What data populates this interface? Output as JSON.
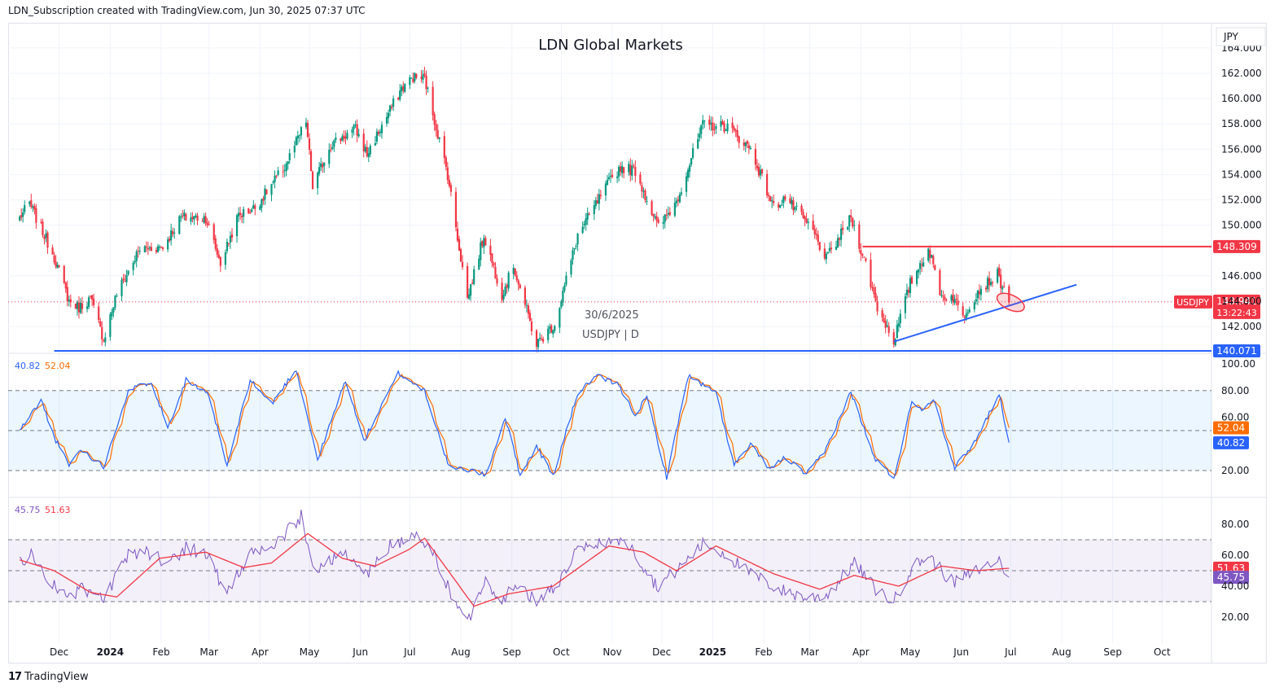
{
  "header": {
    "caption": "LDN_Subscription created with TradingView.com, Jun 30, 2025 07:37 UTC"
  },
  "footer": {
    "brand": "TradingView",
    "logo_glyph": "17"
  },
  "chart_data": [
    {
      "type": "candlestick",
      "title": "LDN Global Markets",
      "symbol_label": "USDJPY | D",
      "date_label": "30/6/2025",
      "currency": "JPY",
      "y_ticks": [
        "164.000",
        "162.000",
        "160.000",
        "158.000",
        "156.000",
        "154.000",
        "152.000",
        "150.000",
        "146.000",
        "144.000",
        "142.000"
      ],
      "ylim": [
        139.5,
        164.5
      ],
      "x_ticks": [
        "Dec",
        "2024",
        "Feb",
        "Mar",
        "Apr",
        "May",
        "Jun",
        "Jul",
        "Aug",
        "Sep",
        "Oct",
        "Nov",
        "Dec",
        "2025",
        "Feb",
        "Mar",
        "Apr",
        "May",
        "Jun",
        "Jul",
        "Aug",
        "Sep",
        "Oct"
      ],
      "close_anchors": [
        {
          "date": "2023-11-07",
          "value": 150.6
        },
        {
          "date": "2023-11-13",
          "value": 151.7
        },
        {
          "date": "2023-11-28",
          "value": 147.5
        },
        {
          "date": "2023-12-07",
          "value": 144.0
        },
        {
          "date": "2023-12-13",
          "value": 143.5
        },
        {
          "date": "2023-12-20",
          "value": 144.2
        },
        {
          "date": "2023-12-28",
          "value": 141.0
        },
        {
          "date": "2024-01-05",
          "value": 144.6
        },
        {
          "date": "2024-01-19",
          "value": 148.1
        },
        {
          "date": "2024-02-02",
          "value": 148.3
        },
        {
          "date": "2024-02-13",
          "value": 150.6
        },
        {
          "date": "2024-02-28",
          "value": 150.6
        },
        {
          "date": "2024-03-08",
          "value": 147.0
        },
        {
          "date": "2024-03-19",
          "value": 150.8
        },
        {
          "date": "2024-03-29",
          "value": 151.4
        },
        {
          "date": "2024-04-16",
          "value": 154.6
        },
        {
          "date": "2024-04-29",
          "value": 158.2
        },
        {
          "date": "2024-05-03",
          "value": 153.0
        },
        {
          "date": "2024-05-14",
          "value": 156.4
        },
        {
          "date": "2024-05-29",
          "value": 157.6
        },
        {
          "date": "2024-06-05",
          "value": 155.6
        },
        {
          "date": "2024-06-26",
          "value": 160.8
        },
        {
          "date": "2024-07-03",
          "value": 161.7
        },
        {
          "date": "2024-07-10",
          "value": 161.6
        },
        {
          "date": "2024-07-16",
          "value": 158.3
        },
        {
          "date": "2024-07-24",
          "value": 154.0
        },
        {
          "date": "2024-08-02",
          "value": 146.6
        },
        {
          "date": "2024-08-05",
          "value": 144.2
        },
        {
          "date": "2024-08-15",
          "value": 149.2
        },
        {
          "date": "2024-08-26",
          "value": 144.5
        },
        {
          "date": "2024-09-02",
          "value": 146.8
        },
        {
          "date": "2024-09-16",
          "value": 140.6
        },
        {
          "date": "2024-09-27",
          "value": 142.2
        },
        {
          "date": "2024-10-11",
          "value": 149.2
        },
        {
          "date": "2024-10-30",
          "value": 153.4
        },
        {
          "date": "2024-11-06",
          "value": 154.6
        },
        {
          "date": "2024-11-15",
          "value": 154.3
        },
        {
          "date": "2024-11-29",
          "value": 149.8
        },
        {
          "date": "2024-12-10",
          "value": 151.9
        },
        {
          "date": "2024-12-26",
          "value": 157.9
        },
        {
          "date": "2025-01-10",
          "value": 157.8
        },
        {
          "date": "2025-01-24",
          "value": 156.0
        },
        {
          "date": "2025-02-07",
          "value": 151.4
        },
        {
          "date": "2025-02-14",
          "value": 152.2
        },
        {
          "date": "2025-03-03",
          "value": 149.5
        },
        {
          "date": "2025-03-11",
          "value": 147.3
        },
        {
          "date": "2025-03-26",
          "value": 150.6
        },
        {
          "date": "2025-04-04",
          "value": 146.9
        },
        {
          "date": "2025-04-11",
          "value": 143.5
        },
        {
          "date": "2025-04-21",
          "value": 140.9
        },
        {
          "date": "2025-05-01",
          "value": 145.4
        },
        {
          "date": "2025-05-12",
          "value": 148.2
        },
        {
          "date": "2025-05-20",
          "value": 144.4
        },
        {
          "date": "2025-05-27",
          "value": 144.3
        },
        {
          "date": "2025-06-02",
          "value": 142.8
        },
        {
          "date": "2025-06-11",
          "value": 144.8
        },
        {
          "date": "2025-06-23",
          "value": 146.1
        },
        {
          "date": "2025-06-30",
          "value": 143.9
        }
      ],
      "levels": [
        {
          "name": "resistance",
          "value": 148.309,
          "label": "148.309",
          "color": "#f23645",
          "from": "2025-04-02"
        },
        {
          "name": "support",
          "value": 140.071,
          "label": "140.071",
          "color": "#2962ff",
          "from": "2023-11-28"
        }
      ],
      "trendline": {
        "from": {
          "date": "2025-04-21",
          "value": 140.8
        },
        "to": {
          "date": "2025-08-10",
          "value": 145.3
        },
        "color": "#2962ff"
      },
      "current": {
        "symbol": "USDJPY",
        "price_label": "143.941",
        "countdown": "13:22:43",
        "value": 143.941,
        "color": "#f23645"
      },
      "highlight": {
        "date": "2025-07-01",
        "value": 143.9,
        "color": "#f23645"
      }
    },
    {
      "type": "line",
      "name": "stochastic",
      "values_label": [
        "40.82",
        "52.04"
      ],
      "series": [
        {
          "value": 40.82,
          "label": "40.82",
          "color": "#2962ff"
        },
        {
          "value": 52.04,
          "label": "52.04",
          "color": "#ff6d00"
        }
      ],
      "y_ticks": [
        "100.00",
        "80.00",
        "60.00",
        "20.00"
      ],
      "ylim": [
        12,
        104
      ],
      "band": [
        20,
        80
      ],
      "midline": 50,
      "anchors": [
        {
          "date": "2023-11-07",
          "value": 50
        },
        {
          "date": "2023-11-20",
          "value": 73
        },
        {
          "date": "2023-11-28",
          "value": 45
        },
        {
          "date": "2023-12-07",
          "value": 24
        },
        {
          "date": "2023-12-14",
          "value": 36
        },
        {
          "date": "2023-12-28",
          "value": 23
        },
        {
          "date": "2024-01-12",
          "value": 80
        },
        {
          "date": "2024-01-26",
          "value": 87
        },
        {
          "date": "2024-02-05",
          "value": 52
        },
        {
          "date": "2024-02-16",
          "value": 88
        },
        {
          "date": "2024-03-01",
          "value": 76
        },
        {
          "date": "2024-03-12",
          "value": 23
        },
        {
          "date": "2024-03-26",
          "value": 88
        },
        {
          "date": "2024-04-08",
          "value": 70
        },
        {
          "date": "2024-04-23",
          "value": 96
        },
        {
          "date": "2024-05-06",
          "value": 28
        },
        {
          "date": "2024-05-23",
          "value": 88
        },
        {
          "date": "2024-06-03",
          "value": 42
        },
        {
          "date": "2024-06-24",
          "value": 93
        },
        {
          "date": "2024-07-10",
          "value": 80
        },
        {
          "date": "2024-07-25",
          "value": 22
        },
        {
          "date": "2024-08-09",
          "value": 20
        },
        {
          "date": "2024-08-16",
          "value": 16
        },
        {
          "date": "2024-08-28",
          "value": 60
        },
        {
          "date": "2024-09-06",
          "value": 17
        },
        {
          "date": "2024-09-16",
          "value": 38
        },
        {
          "date": "2024-09-26",
          "value": 16
        },
        {
          "date": "2024-10-11",
          "value": 78
        },
        {
          "date": "2024-10-22",
          "value": 91
        },
        {
          "date": "2024-11-04",
          "value": 85
        },
        {
          "date": "2024-11-15",
          "value": 62
        },
        {
          "date": "2024-11-22",
          "value": 75
        },
        {
          "date": "2024-12-04",
          "value": 15
        },
        {
          "date": "2024-12-17",
          "value": 91
        },
        {
          "date": "2025-01-03",
          "value": 78
        },
        {
          "date": "2025-01-14",
          "value": 24
        },
        {
          "date": "2025-01-24",
          "value": 39
        },
        {
          "date": "2025-02-05",
          "value": 21
        },
        {
          "date": "2025-02-14",
          "value": 30
        },
        {
          "date": "2025-02-27",
          "value": 17
        },
        {
          "date": "2025-03-10",
          "value": 34
        },
        {
          "date": "2025-03-26",
          "value": 79
        },
        {
          "date": "2025-04-09",
          "value": 30
        },
        {
          "date": "2025-04-21",
          "value": 14
        },
        {
          "date": "2025-05-02",
          "value": 72
        },
        {
          "date": "2025-05-10",
          "value": 65
        },
        {
          "date": "2025-05-15",
          "value": 75
        },
        {
          "date": "2025-05-28",
          "value": 22
        },
        {
          "date": "2025-06-10",
          "value": 43
        },
        {
          "date": "2025-06-24",
          "value": 78
        },
        {
          "date": "2025-06-30",
          "value": 41
        }
      ]
    },
    {
      "type": "line",
      "name": "rsi",
      "values_label": [
        "45.75",
        "51.63"
      ],
      "series": [
        {
          "value": 45.75,
          "label": "45.75",
          "color": "#7e57c2"
        },
        {
          "value": 51.63,
          "label": "51.63",
          "color": "#f23645"
        }
      ],
      "y_ticks": [
        "80.00",
        "60.00",
        "40.00",
        "20.00"
      ],
      "ylim": [
        13,
        90
      ],
      "band": [
        30,
        70
      ],
      "midline": 50,
      "anchors": [
        {
          "date": "2023-11-07",
          "value": 56
        },
        {
          "date": "2023-11-14",
          "value": 60
        },
        {
          "date": "2023-11-28",
          "value": 40
        },
        {
          "date": "2023-12-07",
          "value": 33
        },
        {
          "date": "2023-12-14",
          "value": 38
        },
        {
          "date": "2023-12-28",
          "value": 31
        },
        {
          "date": "2024-01-12",
          "value": 60
        },
        {
          "date": "2024-01-22",
          "value": 63
        },
        {
          "date": "2024-02-05",
          "value": 55
        },
        {
          "date": "2024-02-16",
          "value": 65
        },
        {
          "date": "2024-03-01",
          "value": 60
        },
        {
          "date": "2024-03-11",
          "value": 35
        },
        {
          "date": "2024-03-28",
          "value": 62
        },
        {
          "date": "2024-04-10",
          "value": 66
        },
        {
          "date": "2024-04-26",
          "value": 85
        },
        {
          "date": "2024-05-03",
          "value": 50
        },
        {
          "date": "2024-05-20",
          "value": 62
        },
        {
          "date": "2024-06-05",
          "value": 48
        },
        {
          "date": "2024-06-20",
          "value": 67
        },
        {
          "date": "2024-07-05",
          "value": 72
        },
        {
          "date": "2024-07-15",
          "value": 62
        },
        {
          "date": "2024-07-26",
          "value": 35
        },
        {
          "date": "2024-08-05",
          "value": 16
        },
        {
          "date": "2024-08-15",
          "value": 44
        },
        {
          "date": "2024-08-26",
          "value": 32
        },
        {
          "date": "2024-09-04",
          "value": 40
        },
        {
          "date": "2024-09-16",
          "value": 30
        },
        {
          "date": "2024-09-30",
          "value": 43
        },
        {
          "date": "2024-10-10",
          "value": 62
        },
        {
          "date": "2024-10-30",
          "value": 70
        },
        {
          "date": "2024-11-12",
          "value": 66
        },
        {
          "date": "2024-11-28",
          "value": 40
        },
        {
          "date": "2024-12-10",
          "value": 50
        },
        {
          "date": "2024-12-27",
          "value": 68
        },
        {
          "date": "2025-01-10",
          "value": 60
        },
        {
          "date": "2025-01-21",
          "value": 50
        },
        {
          "date": "2025-02-10",
          "value": 38
        },
        {
          "date": "2025-02-28",
          "value": 32
        },
        {
          "date": "2025-03-12",
          "value": 35
        },
        {
          "date": "2025-03-28",
          "value": 55
        },
        {
          "date": "2025-04-10",
          "value": 38
        },
        {
          "date": "2025-04-21",
          "value": 30
        },
        {
          "date": "2025-05-02",
          "value": 52
        },
        {
          "date": "2025-05-12",
          "value": 60
        },
        {
          "date": "2025-05-27",
          "value": 42
        },
        {
          "date": "2025-06-10",
          "value": 50
        },
        {
          "date": "2025-06-24",
          "value": 57
        },
        {
          "date": "2025-06-30",
          "value": 46
        }
      ],
      "ma_anchors": [
        {
          "date": "2023-11-07",
          "value": 57
        },
        {
          "date": "2023-11-28",
          "value": 50
        },
        {
          "date": "2023-12-20",
          "value": 36
        },
        {
          "date": "2024-01-05",
          "value": 33
        },
        {
          "date": "2024-01-31",
          "value": 58
        },
        {
          "date": "2024-02-28",
          "value": 62
        },
        {
          "date": "2024-03-22",
          "value": 52
        },
        {
          "date": "2024-04-08",
          "value": 55
        },
        {
          "date": "2024-04-30",
          "value": 74
        },
        {
          "date": "2024-05-21",
          "value": 58
        },
        {
          "date": "2024-06-10",
          "value": 53
        },
        {
          "date": "2024-07-01",
          "value": 64
        },
        {
          "date": "2024-07-10",
          "value": 71
        },
        {
          "date": "2024-08-09",
          "value": 27
        },
        {
          "date": "2024-08-30",
          "value": 35
        },
        {
          "date": "2024-09-26",
          "value": 40
        },
        {
          "date": "2024-10-30",
          "value": 66
        },
        {
          "date": "2024-11-20",
          "value": 62
        },
        {
          "date": "2024-12-10",
          "value": 50
        },
        {
          "date": "2025-01-03",
          "value": 66
        },
        {
          "date": "2025-02-07",
          "value": 48
        },
        {
          "date": "2025-03-07",
          "value": 38
        },
        {
          "date": "2025-03-28",
          "value": 47
        },
        {
          "date": "2025-04-24",
          "value": 40
        },
        {
          "date": "2025-05-20",
          "value": 53
        },
        {
          "date": "2025-06-10",
          "value": 50
        },
        {
          "date": "2025-06-30",
          "value": 51.6
        }
      ]
    }
  ]
}
